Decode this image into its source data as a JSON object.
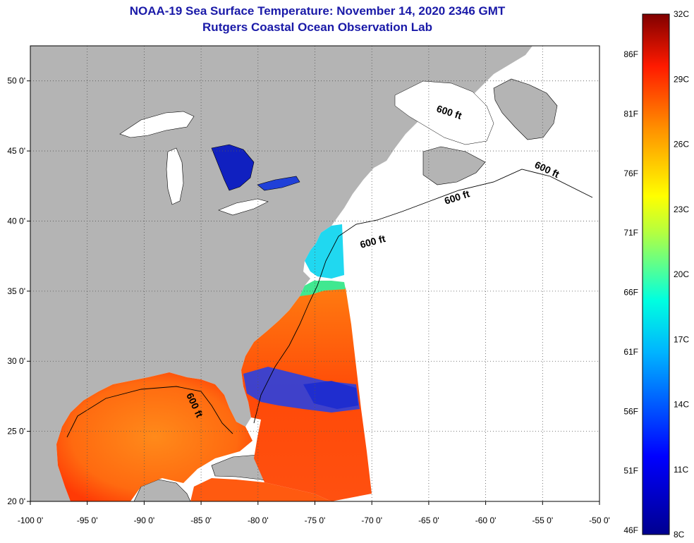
{
  "title": "NOAA-19 Sea Surface Temperature:  November 14, 2020 2346 GMT",
  "subtitle": "Rutgers Coastal Ocean Observation Lab",
  "map": {
    "lon_range": [
      -100,
      -50
    ],
    "lat_range": [
      20,
      52.5
    ],
    "lon_ticks": [
      "-100 0'",
      "-95 0'",
      "-90 0'",
      "-85 0'",
      "-80 0'",
      "-75 0'",
      "-70 0'",
      "-65 0'",
      "-60 0'",
      "-55 0'",
      "-50 0'"
    ],
    "lat_ticks": [
      "20 0'",
      "25 0'",
      "30 0'",
      "35 0'",
      "40 0'",
      "45 0'",
      "50 0'"
    ],
    "contour_label": "600 ft",
    "colors": {
      "land": "#b4b4b4",
      "no_data": "#ffffff",
      "title": "#1a1aa8"
    }
  },
  "colorbar": {
    "celsius_labels": [
      "32C",
      "29C",
      "26C",
      "23C",
      "20C",
      "17C",
      "14C",
      "11C",
      "8C"
    ],
    "fahrenheit_labels": [
      "86F",
      "81F",
      "76F",
      "71F",
      "66F",
      "61F",
      "56F",
      "51F",
      "46F"
    ],
    "range_c": [
      8,
      32
    ]
  }
}
